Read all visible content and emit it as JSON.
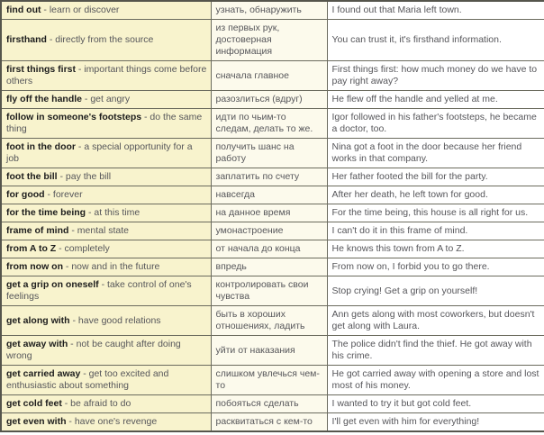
{
  "colors": {
    "col1_bg": "#f8f3cd",
    "col2_bg": "#fcfaec",
    "col3_bg": "#ffffff",
    "border": "#6b6b5e",
    "text": "#56565a",
    "idiom_text": "#1c1c1c"
  },
  "table": {
    "separator": " - ",
    "columns": [
      "idiom-and-definition",
      "russian-translation",
      "example-sentence"
    ],
    "rows": [
      {
        "idiom": "find out",
        "definition": "learn or discover",
        "translation": "узнать, обнаружить",
        "example": "I found out that Maria left town."
      },
      {
        "idiom": "firsthand",
        "definition": "directly from the source",
        "translation": "из первых рук, достоверная информация",
        "example": "You can trust it, it's firsthand information."
      },
      {
        "idiom": "first things first",
        "definition": "important things come before others",
        "translation": "сначала главное",
        "example": "First things first: how much money do we have to pay right away?"
      },
      {
        "idiom": "fly off the handle",
        "definition": "get angry",
        "translation": "разозлиться (вдруг)",
        "example": "He flew off the handle and yelled at me."
      },
      {
        "idiom": "follow in someone's footsteps",
        "definition": "do the same thing",
        "translation": "идти по чьим-то следам, делать то же.",
        "example": "Igor followed in his father's footsteps, he became a doctor, too."
      },
      {
        "idiom": "foot in the door",
        "definition": "a special opportunity for a job",
        "translation": "получить шанс на работу",
        "example": "Nina got a foot in the door because her friend works in that company."
      },
      {
        "idiom": "foot the bill",
        "definition": "pay the bill",
        "translation": "заплатить по счету",
        "example": "Her father footed the bill for the party."
      },
      {
        "idiom": "for good",
        "definition": "forever",
        "translation": "навсегда",
        "example": "After her death, he left town for good."
      },
      {
        "idiom": "for the time being",
        "definition": "at this time",
        "translation": "на данное время",
        "example": "For the time being, this house is all right for us."
      },
      {
        "idiom": "frame of mind",
        "definition": "mental state",
        "translation": "умонастроение",
        "example": "I can't do it in this frame of mind."
      },
      {
        "idiom": "from A to Z",
        "definition": "completely",
        "translation": "от начала до конца",
        "example": "He knows this town from A to Z."
      },
      {
        "idiom": "from now on",
        "definition": "now and in the future",
        "translation": "впредь",
        "example": "From now on, I forbid you to go there."
      },
      {
        "idiom": "get a grip on oneself",
        "definition": "take control of one's feelings",
        "translation": "контролировать свои чувства",
        "example": "Stop crying! Get a grip on yourself!"
      },
      {
        "idiom": "get along with",
        "definition": "have good relations",
        "translation": "быть в хороших отношениях, ладить",
        "example": "Ann gets along with most coworkers, but doesn't get along with Laura."
      },
      {
        "idiom": "get away with",
        "definition": "not be caught after doing wrong",
        "translation": "уйти от наказания",
        "example": "The police didn't find the thief. He got away with his crime."
      },
      {
        "idiom": "get carried away",
        "definition": "get too excited and enthusiastic about something",
        "translation": "слишком увлечься чем-то",
        "example": "He got carried away with opening a store and lost most of his money."
      },
      {
        "idiom": "get cold feet",
        "definition": "be afraid to do",
        "translation": "побояться сделать",
        "example": "I wanted to try it but got cold feet."
      },
      {
        "idiom": "get even with",
        "definition": "have one's revenge",
        "translation": "расквитаться с кем-то",
        "example": "I'll get even with him for everything!"
      }
    ]
  }
}
